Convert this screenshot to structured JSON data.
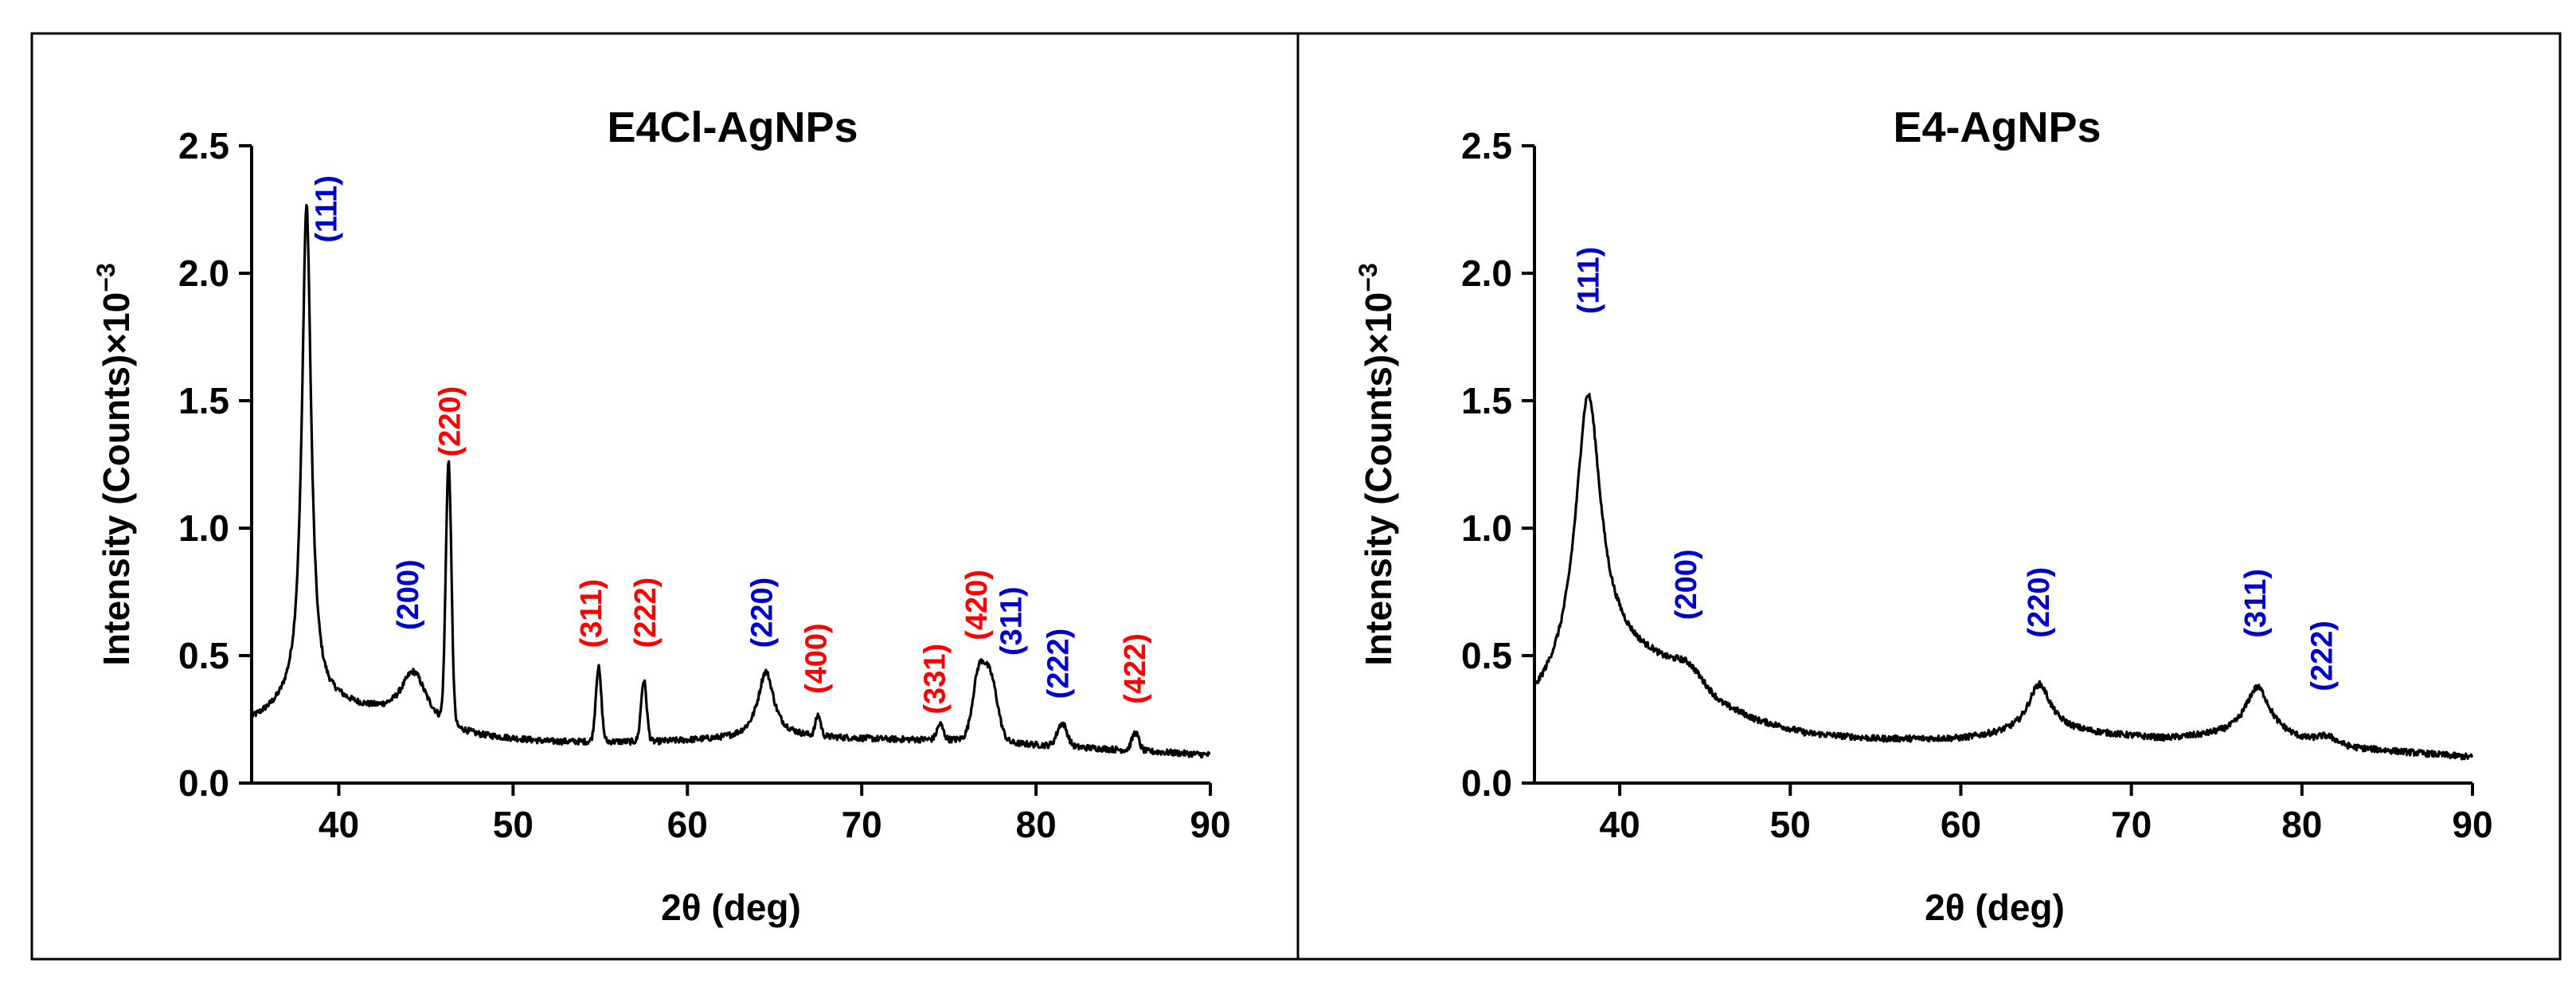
{
  "colors": {
    "line": "#000000",
    "blue": "#0000cc",
    "red": "#ff0000",
    "frame": "#000000"
  },
  "chart_data": [
    {
      "type": "line",
      "title": "E4Cl-AgNPs",
      "xlabel": "2θ (deg)",
      "ylabel_main": "Intensity (Counts)×10",
      "ylabel_sup": "−3",
      "xlim": [
        35,
        90
      ],
      "ylim": [
        0,
        2.5
      ],
      "xticks": [
        "40",
        "50",
        "60",
        "70",
        "80",
        "90"
      ],
      "xtick_values": [
        40,
        50,
        60,
        70,
        80,
        90
      ],
      "yticks": [
        "0.0",
        "0.5",
        "1.0",
        "1.5",
        "2.0",
        "2.5"
      ],
      "ytick_values": [
        0,
        0.5,
        1.0,
        1.5,
        2.0,
        2.5
      ],
      "baseline": [
        [
          35,
          0.24
        ],
        [
          37,
          0.29
        ],
        [
          40,
          0.3
        ],
        [
          42,
          0.27
        ],
        [
          45,
          0.22
        ],
        [
          48,
          0.18
        ],
        [
          52,
          0.16
        ],
        [
          58,
          0.16
        ],
        [
          62,
          0.17
        ],
        [
          66,
          0.18
        ],
        [
          72,
          0.17
        ],
        [
          76,
          0.17
        ],
        [
          80,
          0.15
        ],
        [
          85,
          0.13
        ],
        [
          90,
          0.11
        ]
      ],
      "peaks": [
        {
          "x": 38.15,
          "height": 1.97,
          "width": 0.32,
          "shape": "lorentz"
        },
        {
          "x": 44.3,
          "height": 0.2,
          "width": 0.9,
          "shape": "lorentz"
        },
        {
          "x": 46.3,
          "height": 1.02,
          "width": 0.16,
          "shape": "gauss"
        },
        {
          "x": 54.9,
          "height": 0.29,
          "width": 0.16,
          "shape": "gauss"
        },
        {
          "x": 57.5,
          "height": 0.24,
          "width": 0.16,
          "shape": "gauss"
        },
        {
          "x": 64.5,
          "height": 0.26,
          "width": 0.55,
          "shape": "lorentz"
        },
        {
          "x": 67.5,
          "height": 0.08,
          "width": 0.15,
          "shape": "gauss"
        },
        {
          "x": 74.5,
          "height": 0.06,
          "width": 0.18,
          "shape": "gauss"
        },
        {
          "x": 76.7,
          "height": 0.24,
          "width": 0.35,
          "shape": "gauss"
        },
        {
          "x": 77.4,
          "height": 0.24,
          "width": 0.4,
          "shape": "gauss"
        },
        {
          "x": 81.5,
          "height": 0.09,
          "width": 0.28,
          "shape": "gauss"
        },
        {
          "x": 85.7,
          "height": 0.07,
          "width": 0.2,
          "shape": "gauss"
        }
      ],
      "noise": 0.012,
      "labels": [
        {
          "text": "(111)",
          "x": 39.4,
          "y": 2.12,
          "color": "blue"
        },
        {
          "text": "(200)",
          "x": 44.1,
          "y": 0.6,
          "color": "blue"
        },
        {
          "text": "(220)",
          "x": 46.5,
          "y": 1.28,
          "color": "red"
        },
        {
          "text": "(311)",
          "x": 54.6,
          "y": 0.53,
          "color": "red"
        },
        {
          "text": "(222)",
          "x": 57.7,
          "y": 0.53,
          "color": "red"
        },
        {
          "text": "(220)",
          "x": 64.4,
          "y": 0.53,
          "color": "blue"
        },
        {
          "text": "(400)",
          "x": 67.5,
          "y": 0.35,
          "color": "red"
        },
        {
          "text": "(331)",
          "x": 74.3,
          "y": 0.27,
          "color": "red"
        },
        {
          "text": "(420)",
          "x": 76.7,
          "y": 0.56,
          "color": "red"
        },
        {
          "text": "(311)",
          "x": 78.7,
          "y": 0.5,
          "color": "blue"
        },
        {
          "text": "(222)",
          "x": 81.4,
          "y": 0.33,
          "color": "blue"
        },
        {
          "text": "(422)",
          "x": 85.8,
          "y": 0.31,
          "color": "red"
        }
      ]
    },
    {
      "type": "line",
      "title": "E4-AgNPs",
      "xlabel": "2θ (deg)",
      "ylabel_main": "Intensity (Counts)×10",
      "ylabel_sup": "−3",
      "xlim": [
        35,
        90
      ],
      "ylim": [
        0,
        2.5
      ],
      "xticks": [
        "40",
        "50",
        "60",
        "70",
        "80",
        "90"
      ],
      "xtick_values": [
        40,
        50,
        60,
        70,
        80,
        90
      ],
      "yticks": [
        "0.0",
        "0.5",
        "1.0",
        "1.5",
        "2.0",
        "2.5"
      ],
      "ytick_values": [
        0,
        0.5,
        1.0,
        1.5,
        2.0,
        2.5
      ],
      "baseline": [
        [
          35,
          0.3
        ],
        [
          36.5,
          0.38
        ],
        [
          38,
          0.48
        ],
        [
          40,
          0.5
        ],
        [
          42,
          0.47
        ],
        [
          44,
          0.4
        ],
        [
          46,
          0.3
        ],
        [
          48,
          0.24
        ],
        [
          51,
          0.19
        ],
        [
          55,
          0.17
        ],
        [
          60,
          0.17
        ],
        [
          63,
          0.19
        ],
        [
          66,
          0.2
        ],
        [
          68,
          0.19
        ],
        [
          72,
          0.17
        ],
        [
          75,
          0.18
        ],
        [
          79,
          0.17
        ],
        [
          82,
          0.14
        ],
        [
          86,
          0.12
        ],
        [
          90,
          0.1
        ]
      ],
      "peaks": [
        {
          "x": 38.15,
          "height": 1.04,
          "width": 0.9,
          "shape": "lorentz"
        },
        {
          "x": 44.0,
          "height": 0.05,
          "width": 0.8,
          "shape": "gauss"
        },
        {
          "x": 64.6,
          "height": 0.19,
          "width": 0.8,
          "shape": "lorentz"
        },
        {
          "x": 77.4,
          "height": 0.2,
          "width": 0.9,
          "shape": "lorentz"
        },
        {
          "x": 81.5,
          "height": 0.03,
          "width": 0.6,
          "shape": "gauss"
        }
      ],
      "noise": 0.012,
      "labels": [
        {
          "text": "(111)",
          "x": 38.3,
          "y": 1.84,
          "color": "blue"
        },
        {
          "text": "(200)",
          "x": 44.0,
          "y": 0.64,
          "color": "blue"
        },
        {
          "text": "(220)",
          "x": 64.7,
          "y": 0.57,
          "color": "blue"
        },
        {
          "text": "(311)",
          "x": 77.4,
          "y": 0.57,
          "color": "blue"
        },
        {
          "text": "(222)",
          "x": 81.3,
          "y": 0.36,
          "color": "blue"
        }
      ]
    }
  ]
}
